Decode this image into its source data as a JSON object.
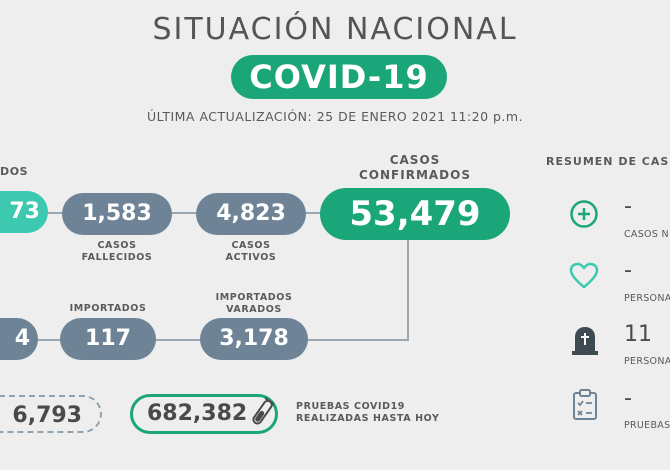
{
  "header": {
    "title": "SITUACIÓN NACIONAL",
    "badge": "COVID-19",
    "update": "ÚLTIMA ACTUALIZACIÓN: 25 DE ENERO 2021 11:20 p.m."
  },
  "left_partial": {
    "label_fragment": "DOS",
    "value_fragment": "73",
    "row2_fragment": "4",
    "dashed_value": "6,793"
  },
  "row1": {
    "fallecidos": {
      "value": "1,583",
      "label_line1": "CASOS",
      "label_line2": "FALLECIDOS"
    },
    "activos": {
      "value": "4,823",
      "label_line1": "CASOS",
      "label_line2": "ACTIVOS"
    },
    "confirmados": {
      "value": "53,479",
      "label_line1": "CASOS",
      "label_line2": "CONFIRMADOS"
    }
  },
  "row2": {
    "importados": {
      "value": "117",
      "label": "IMPORTADOS"
    },
    "varados": {
      "value": "3,178",
      "label_line1": "IMPORTADOS",
      "label_line2": "VARADOS"
    }
  },
  "tests": {
    "value": "682,382",
    "label_line1": "PRUEBAS COVID19",
    "label_line2": "REALIZADAS HASTA HOY"
  },
  "sidebar": {
    "heading": "RESUMEN DE CAS",
    "items": [
      {
        "icon": "plus-circle-icon",
        "value": "-",
        "label": "CASOS N"
      },
      {
        "icon": "heart-icon",
        "value": "-",
        "label": "PERSONA"
      },
      {
        "icon": "tombstone-icon",
        "value": "11",
        "label": "PERSONA"
      },
      {
        "icon": "clipboard-icon",
        "value": "-",
        "label": "PRUEBAS"
      }
    ]
  },
  "colors": {
    "green": "#1ba67a",
    "teal": "#3cc9b0",
    "slate": "#6e8496",
    "background": "#eeeeee"
  }
}
